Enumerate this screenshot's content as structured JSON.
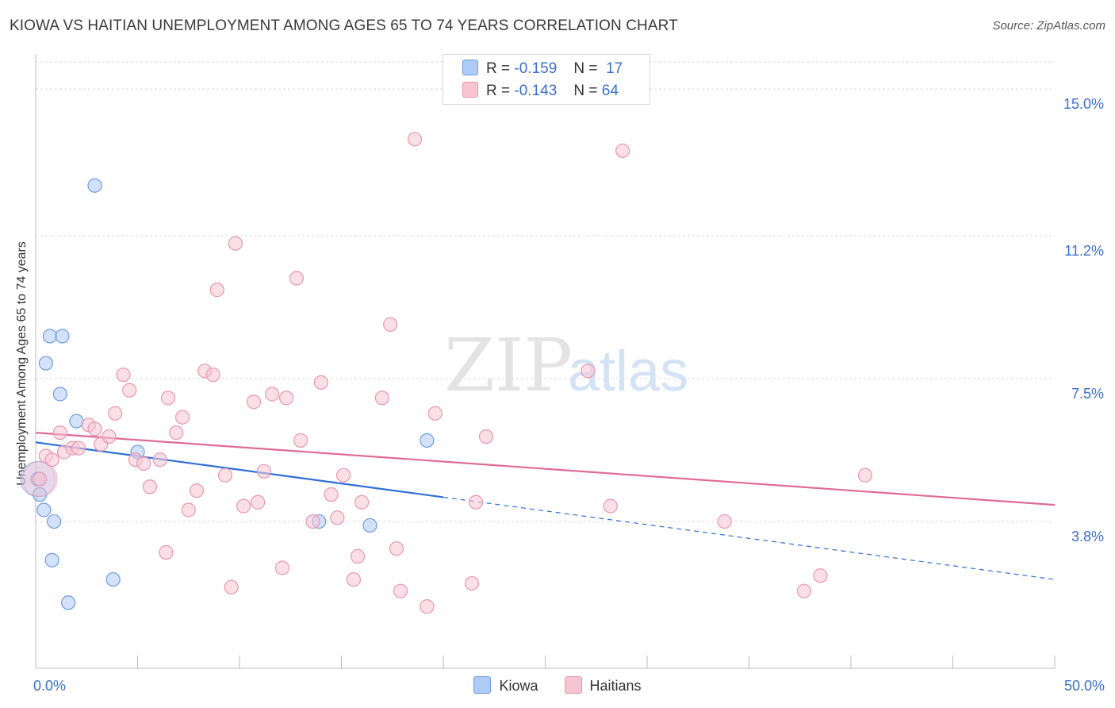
{
  "title": "KIOWA VS HAITIAN UNEMPLOYMENT AMONG AGES 65 TO 74 YEARS CORRELATION CHART",
  "source": "Source: ZipAtlas.com",
  "watermark": {
    "zip": "ZIP",
    "atlas": "atlas"
  },
  "legend_top": [
    {
      "r_label": "R =",
      "r_value": "-0.159",
      "n_label": "N =",
      "n_value": "17"
    },
    {
      "r_label": "R =",
      "r_value": "-0.143",
      "n_label": "N =",
      "n_value": "64"
    }
  ],
  "legend_bottom": [
    {
      "label": "Kiowa"
    },
    {
      "label": "Haitians"
    }
  ],
  "colors": {
    "kiowa_fill": "#aecbf5",
    "kiowa_stroke": "#6f9be0",
    "kiowa_line": "#2f6fd6",
    "haitian_fill": "#f7c4d3",
    "haitian_stroke": "#e896b0",
    "haitian_line": "#e06a96",
    "tick_label": "#3b6fd0"
  },
  "chart_data": {
    "type": "scatter",
    "xlabel": "",
    "ylabel": "Unemployment Among Ages 65 to 74 years",
    "xlim": [
      0,
      50
    ],
    "ylim": [
      0,
      15.7
    ],
    "x_tick_labels": [
      {
        "value": 0,
        "label": "0.0%"
      },
      {
        "value": 50,
        "label": "50.0%"
      }
    ],
    "y_ticks": [
      {
        "value": 3.8,
        "label": "3.8%"
      },
      {
        "value": 7.5,
        "label": "7.5%"
      },
      {
        "value": 11.2,
        "label": "11.2%"
      },
      {
        "value": 15.0,
        "label": "15.0%"
      }
    ],
    "grid": true,
    "series": [
      {
        "name": "Kiowa",
        "points": [
          [
            0.1,
            4.9
          ],
          [
            0.2,
            4.5
          ],
          [
            0.4,
            4.1
          ],
          [
            0.5,
            7.9
          ],
          [
            0.7,
            8.6
          ],
          [
            0.8,
            2.8
          ],
          [
            0.9,
            3.8
          ],
          [
            1.2,
            7.1
          ],
          [
            1.3,
            8.6
          ],
          [
            1.6,
            1.7
          ],
          [
            2.0,
            6.4
          ],
          [
            2.9,
            12.5
          ],
          [
            3.8,
            2.3
          ],
          [
            5.0,
            5.6
          ],
          [
            13.9,
            3.8
          ],
          [
            16.4,
            3.7
          ],
          [
            19.2,
            5.9
          ]
        ],
        "trend": {
          "x0": 0,
          "y0": 5.85,
          "x1": 20.0,
          "y1": 4.43,
          "dashed_to_x": 50,
          "dashed_to_y": 2.3
        },
        "large_point": {
          "x": 0.1,
          "y": 4.9
        }
      },
      {
        "name": "Haitians",
        "points": [
          [
            0.5,
            5.5
          ],
          [
            0.8,
            5.4
          ],
          [
            1.2,
            6.1
          ],
          [
            1.4,
            5.6
          ],
          [
            1.8,
            5.7
          ],
          [
            2.1,
            5.7
          ],
          [
            2.6,
            6.3
          ],
          [
            2.9,
            6.2
          ],
          [
            3.2,
            5.8
          ],
          [
            3.6,
            6.0
          ],
          [
            3.9,
            6.6
          ],
          [
            4.3,
            7.6
          ],
          [
            4.6,
            7.2
          ],
          [
            4.9,
            5.4
          ],
          [
            5.3,
            5.3
          ],
          [
            5.6,
            4.7
          ],
          [
            6.1,
            5.4
          ],
          [
            6.4,
            3.0
          ],
          [
            6.5,
            7.0
          ],
          [
            6.9,
            6.1
          ],
          [
            7.2,
            6.5
          ],
          [
            7.5,
            4.1
          ],
          [
            7.9,
            4.6
          ],
          [
            8.3,
            7.7
          ],
          [
            8.7,
            7.6
          ],
          [
            8.9,
            9.8
          ],
          [
            9.3,
            5.0
          ],
          [
            9.6,
            2.1
          ],
          [
            9.8,
            11.0
          ],
          [
            10.2,
            4.2
          ],
          [
            10.7,
            6.9
          ],
          [
            10.9,
            4.3
          ],
          [
            11.2,
            5.1
          ],
          [
            11.6,
            7.1
          ],
          [
            12.1,
            2.6
          ],
          [
            12.3,
            7.0
          ],
          [
            12.8,
            10.1
          ],
          [
            13.0,
            5.9
          ],
          [
            13.6,
            3.8
          ],
          [
            14.0,
            7.4
          ],
          [
            14.5,
            4.5
          ],
          [
            14.8,
            3.9
          ],
          [
            15.1,
            5.0
          ],
          [
            15.6,
            2.3
          ],
          [
            15.8,
            2.9
          ],
          [
            16.0,
            4.3
          ],
          [
            17.0,
            7.0
          ],
          [
            17.4,
            8.9
          ],
          [
            17.7,
            3.1
          ],
          [
            17.9,
            2.0
          ],
          [
            18.6,
            13.7
          ],
          [
            19.2,
            1.6
          ],
          [
            19.6,
            6.6
          ],
          [
            21.4,
            2.2
          ],
          [
            21.6,
            4.3
          ],
          [
            22.1,
            6.0
          ],
          [
            27.1,
            7.7
          ],
          [
            28.2,
            4.2
          ],
          [
            28.8,
            13.4
          ],
          [
            33.8,
            3.8
          ],
          [
            37.7,
            2.0
          ],
          [
            38.5,
            2.4
          ],
          [
            40.7,
            5.0
          ],
          [
            0.2,
            4.9
          ]
        ],
        "trend": {
          "x0": 0,
          "y0": 6.1,
          "x1": 50,
          "y1": 4.23
        },
        "large_point": {
          "x": 0.2,
          "y": 4.9
        }
      }
    ]
  }
}
